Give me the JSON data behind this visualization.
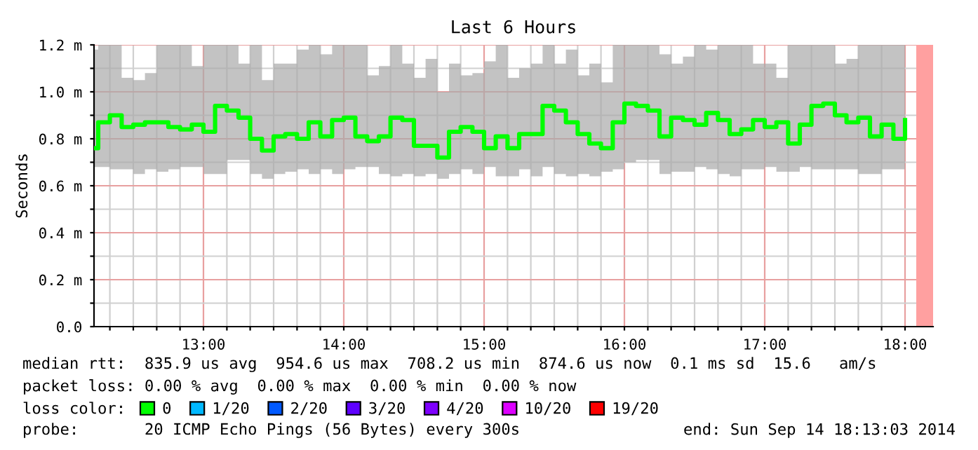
{
  "chart_data": {
    "type": "step",
    "title": "Last 6 Hours",
    "ylabel": "Seconds",
    "x": [
      12.22,
      12.25,
      12.333,
      12.417,
      12.5,
      12.583,
      12.667,
      12.75,
      12.833,
      12.917,
      13,
      13.083,
      13.167,
      13.25,
      13.333,
      13.417,
      13.5,
      13.583,
      13.667,
      13.75,
      13.833,
      13.917,
      14,
      14.083,
      14.167,
      14.25,
      14.333,
      14.417,
      14.5,
      14.583,
      14.667,
      14.75,
      14.833,
      14.917,
      15,
      15.083,
      15.167,
      15.25,
      15.333,
      15.417,
      15.5,
      15.583,
      15.667,
      15.75,
      15.833,
      15.917,
      16,
      16.083,
      16.167,
      16.25,
      16.333,
      16.417,
      16.5,
      16.583,
      16.667,
      16.75,
      16.833,
      16.917,
      17,
      17.083,
      17.167,
      17.25,
      17.333,
      17.417,
      17.5,
      17.583,
      17.667,
      17.75,
      17.833,
      17.917,
      18
    ],
    "series": [
      {
        "name": "0",
        "color": "#00ff00",
        "values": [
          0.76,
          0.87,
          0.9,
          0.85,
          0.86,
          0.87,
          0.87,
          0.85,
          0.84,
          0.86,
          0.83,
          0.94,
          0.92,
          0.89,
          0.8,
          0.75,
          0.81,
          0.82,
          0.8,
          0.87,
          0.81,
          0.88,
          0.89,
          0.81,
          0.79,
          0.81,
          0.89,
          0.88,
          0.77,
          0.77,
          0.72,
          0.83,
          0.85,
          0.83,
          0.76,
          0.81,
          0.76,
          0.82,
          0.82,
          0.94,
          0.92,
          0.87,
          0.82,
          0.78,
          0.76,
          0.87,
          0.95,
          0.94,
          0.92,
          0.81,
          0.89,
          0.88,
          0.86,
          0.91,
          0.88,
          0.82,
          0.84,
          0.88,
          0.85,
          0.87,
          0.78,
          0.86,
          0.94,
          0.95,
          0.9,
          0.87,
          0.89,
          0.81,
          0.86,
          0.8,
          0.88
        ],
        "upper": [
          1.18,
          1.2,
          1.2,
          1.06,
          1.05,
          1.08,
          1.2,
          1.2,
          1.2,
          1.11,
          1.2,
          1.2,
          1.2,
          1.12,
          1.2,
          1.05,
          1.12,
          1.12,
          1.18,
          1.2,
          1.16,
          1.2,
          1.2,
          1.2,
          1.07,
          1.11,
          1.2,
          1.12,
          1.06,
          1.14,
          1.0,
          1.12,
          1.07,
          1.08,
          1.13,
          1.2,
          1.06,
          1.1,
          1.12,
          1.2,
          1.12,
          1.18,
          1.07,
          1.12,
          1.04,
          1.2,
          1.2,
          1.2,
          1.2,
          1.16,
          1.12,
          1.15,
          1.2,
          1.18,
          1.2,
          1.2,
          1.2,
          1.12,
          1.12,
          1.06,
          1.2,
          1.2,
          1.2,
          1.2,
          1.12,
          1.14,
          1.2,
          1.2,
          1.2,
          1.2,
          1.06
        ],
        "lower": [
          0.68,
          0.68,
          0.67,
          0.67,
          0.65,
          0.67,
          0.66,
          0.67,
          0.68,
          0.68,
          0.65,
          0.65,
          0.71,
          0.71,
          0.65,
          0.63,
          0.65,
          0.66,
          0.67,
          0.65,
          0.67,
          0.65,
          0.67,
          0.68,
          0.68,
          0.65,
          0.64,
          0.65,
          0.64,
          0.65,
          0.63,
          0.65,
          0.67,
          0.65,
          0.68,
          0.64,
          0.64,
          0.67,
          0.64,
          0.68,
          0.65,
          0.64,
          0.65,
          0.64,
          0.66,
          0.67,
          0.7,
          0.71,
          0.71,
          0.65,
          0.66,
          0.66,
          0.68,
          0.67,
          0.65,
          0.64,
          0.67,
          0.67,
          0.68,
          0.66,
          0.66,
          0.68,
          0.67,
          0.67,
          0.67,
          0.67,
          0.65,
          0.65,
          0.67,
          0.67,
          0.67
        ]
      },
      {
        "name": "1/20",
        "color": "#00b8ff",
        "values": [
          null,
          null,
          null,
          null,
          null,
          null,
          null,
          null,
          null,
          null,
          null,
          null,
          null,
          null,
          null,
          null,
          null,
          null,
          null,
          null,
          null,
          null,
          null,
          null,
          null,
          null,
          null,
          null,
          null,
          null,
          null,
          null,
          null,
          null,
          null,
          null,
          null,
          null,
          null,
          null,
          null,
          null,
          null,
          null,
          null,
          null,
          null,
          null,
          null,
          null,
          null,
          null,
          null,
          null,
          null,
          null,
          null,
          null,
          null,
          null,
          null,
          null,
          null,
          null,
          null,
          null,
          null,
          null,
          null,
          null,
          null
        ]
      },
      {
        "name": "2/20",
        "color": "#0059ff",
        "values": [
          null,
          null,
          null,
          null,
          null,
          null,
          null,
          null,
          null,
          null,
          null,
          null,
          null,
          null,
          null,
          null,
          null,
          null,
          null,
          null,
          null,
          null,
          null,
          null,
          null,
          null,
          null,
          null,
          null,
          null,
          null,
          null,
          null,
          null,
          null,
          null,
          null,
          null,
          null,
          null,
          null,
          null,
          null,
          null,
          null,
          null,
          null,
          null,
          null,
          null,
          null,
          null,
          null,
          null,
          null,
          null,
          null,
          null,
          null,
          null,
          null,
          null,
          null,
          null,
          null,
          null,
          null,
          null,
          null,
          null,
          null
        ]
      },
      {
        "name": "3/20",
        "color": "#5e00ff",
        "values": [
          null,
          null,
          null,
          null,
          null,
          null,
          null,
          null,
          null,
          null,
          null,
          null,
          null,
          null,
          null,
          null,
          null,
          null,
          null,
          null,
          null,
          null,
          null,
          null,
          null,
          null,
          null,
          null,
          null,
          null,
          null,
          null,
          null,
          null,
          null,
          null,
          null,
          null,
          null,
          null,
          null,
          null,
          null,
          null,
          null,
          null,
          null,
          null,
          null,
          null,
          null,
          null,
          null,
          null,
          null,
          null,
          null,
          null,
          null,
          null,
          null,
          null,
          null,
          null,
          null,
          null,
          null,
          null,
          null,
          null,
          null
        ]
      },
      {
        "name": "4/20",
        "color": "#7e00ff",
        "values": [
          null,
          null,
          null,
          null,
          null,
          null,
          null,
          null,
          null,
          null,
          null,
          null,
          null,
          null,
          null,
          null,
          null,
          null,
          null,
          null,
          null,
          null,
          null,
          null,
          null,
          null,
          null,
          null,
          null,
          null,
          null,
          null,
          null,
          null,
          null,
          null,
          null,
          null,
          null,
          null,
          null,
          null,
          null,
          null,
          null,
          null,
          null,
          null,
          null,
          null,
          null,
          null,
          null,
          null,
          null,
          null,
          null,
          null,
          null,
          null,
          null,
          null,
          null,
          null,
          null,
          null,
          null,
          null,
          null,
          null,
          null
        ]
      },
      {
        "name": "10/20",
        "color": "#dd00ff",
        "values": [
          null,
          null,
          null,
          null,
          null,
          null,
          null,
          null,
          null,
          null,
          null,
          null,
          null,
          null,
          null,
          null,
          null,
          null,
          null,
          null,
          null,
          null,
          null,
          null,
          null,
          null,
          null,
          null,
          null,
          null,
          null,
          null,
          null,
          null,
          null,
          null,
          null,
          null,
          null,
          null,
          null,
          null,
          null,
          null,
          null,
          null,
          null,
          null,
          null,
          null,
          null,
          null,
          null,
          null,
          null,
          null,
          null,
          null,
          null,
          null,
          null,
          null,
          null,
          null,
          null,
          null,
          null,
          null,
          null,
          null,
          null
        ]
      },
      {
        "name": "19/20",
        "color": "#ff0000",
        "values": [
          null,
          null,
          null,
          null,
          null,
          null,
          null,
          null,
          null,
          null,
          null,
          null,
          null,
          null,
          null,
          null,
          null,
          null,
          null,
          null,
          null,
          null,
          null,
          null,
          null,
          null,
          null,
          null,
          null,
          null,
          null,
          null,
          null,
          null,
          null,
          null,
          null,
          null,
          null,
          null,
          null,
          null,
          null,
          null,
          null,
          null,
          null,
          null,
          null,
          null,
          null,
          null,
          null,
          null,
          null,
          null,
          null,
          null,
          null,
          null,
          null,
          null,
          null,
          null,
          null,
          null,
          null,
          null,
          null,
          null,
          null
        ]
      }
    ],
    "legend_title": "loss color:",
    "legend": "bottom",
    "grid": true,
    "xlim": [
      12.22,
      18.2
    ],
    "xticks": [
      {
        "value": 12.333,
        "label": null
      },
      {
        "value": 12.5,
        "label": null
      },
      {
        "value": 12.667,
        "label": null
      },
      {
        "value": 12.833,
        "label": null
      },
      {
        "value": 13,
        "label": "13:00"
      },
      {
        "value": 13.167,
        "label": null
      },
      {
        "value": 13.333,
        "label": null
      },
      {
        "value": 13.5,
        "label": null
      },
      {
        "value": 13.667,
        "label": null
      },
      {
        "value": 13.833,
        "label": null
      },
      {
        "value": 14,
        "label": "14:00"
      },
      {
        "value": 14.167,
        "label": null
      },
      {
        "value": 14.333,
        "label": null
      },
      {
        "value": 14.5,
        "label": null
      },
      {
        "value": 14.667,
        "label": null
      },
      {
        "value": 14.833,
        "label": null
      },
      {
        "value": 15,
        "label": "15:00"
      },
      {
        "value": 15.167,
        "label": null
      },
      {
        "value": 15.333,
        "label": null
      },
      {
        "value": 15.5,
        "label": null
      },
      {
        "value": 15.667,
        "label": null
      },
      {
        "value": 15.833,
        "label": null
      },
      {
        "value": 16,
        "label": "16:00"
      },
      {
        "value": 16.167,
        "label": null
      },
      {
        "value": 16.333,
        "label": null
      },
      {
        "value": 16.5,
        "label": null
      },
      {
        "value": 16.667,
        "label": null
      },
      {
        "value": 16.833,
        "label": null
      },
      {
        "value": 17,
        "label": "17:00"
      },
      {
        "value": 17.167,
        "label": null
      },
      {
        "value": 17.333,
        "label": null
      },
      {
        "value": 17.5,
        "label": null
      },
      {
        "value": 17.667,
        "label": null
      },
      {
        "value": 17.833,
        "label": null
      },
      {
        "value": 18,
        "label": "18:00"
      }
    ],
    "ylim": [
      0,
      1.2
    ],
    "yticks": [
      {
        "value": 0,
        "label": "0.0"
      },
      {
        "value": 0.1,
        "label": null
      },
      {
        "value": 0.2,
        "label": "0.2 m"
      },
      {
        "value": 0.3,
        "label": null
      },
      {
        "value": 0.4,
        "label": "0.4 m"
      },
      {
        "value": 0.5,
        "label": null
      },
      {
        "value": 0.6,
        "label": "0.6 m"
      },
      {
        "value": 0.7,
        "label": null
      },
      {
        "value": 0.8,
        "label": "0.8 m"
      },
      {
        "value": 0.9,
        "label": null
      },
      {
        "value": 1.0,
        "label": "1.0 m"
      },
      {
        "value": 1.1,
        "label": null
      },
      {
        "value": 1.2,
        "label": "1.2 m"
      }
    ],
    "bands": [
      {
        "axis": "x",
        "from": 18.08,
        "to": 18.2,
        "color": "#ffa0a0"
      }
    ],
    "annotations": [
      "median rtt:  835.9 us avg  954.6 us max  708.2 us min  874.6 us now  0.1 ms sd  15.6   am/s",
      "packet loss: 0.00 % avg  0.00 % max  0.00 % min  0.00 % now",
      "probe:       20 ICMP Echo Pings (56 Bytes) every 300s",
      "end: Sun Sep 14 18:13:03 2014"
    ]
  }
}
